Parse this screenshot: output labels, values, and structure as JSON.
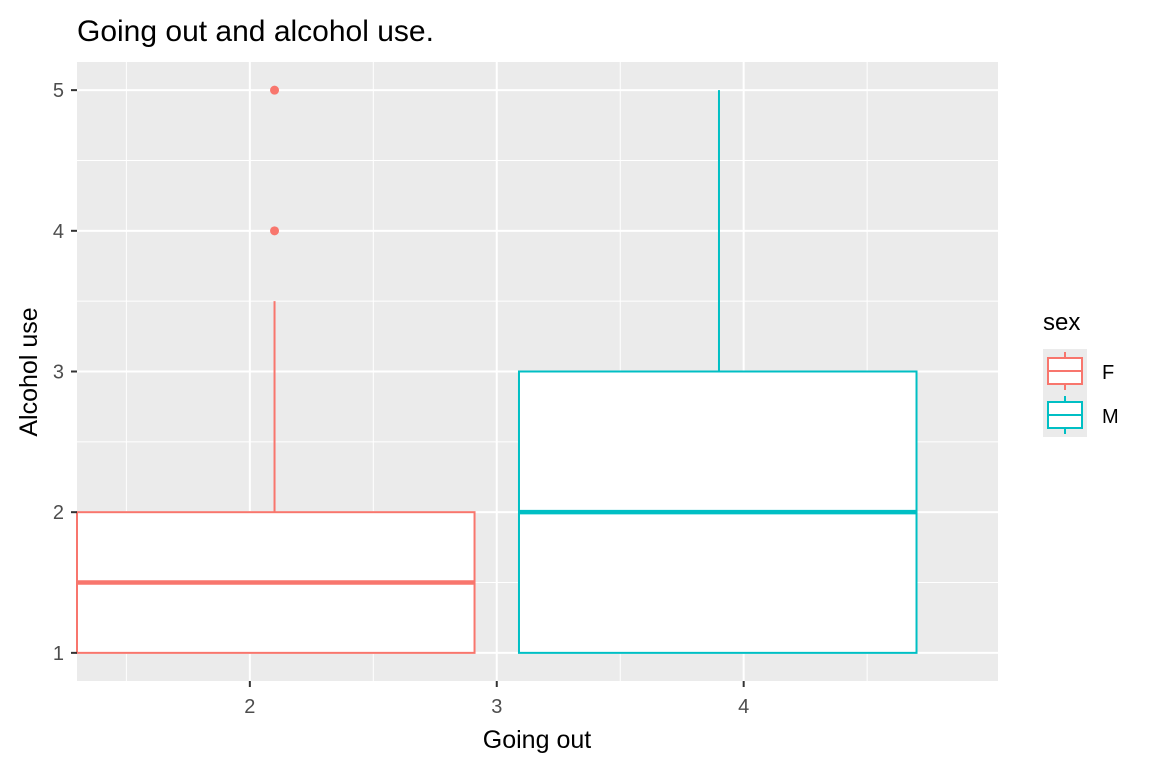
{
  "chart_data": {
    "type": "boxplot",
    "title": "Going out and alcohol use.",
    "xlabel": "Going out",
    "ylabel": "Alcohol use",
    "xlim": [
      1.3,
      5.03
    ],
    "ylim": [
      0.8,
      5.2
    ],
    "x_ticks": [
      2,
      3,
      4
    ],
    "x_minor_ticks": [
      1.5,
      2.5,
      3.5,
      4.5
    ],
    "y_ticks": [
      1,
      2,
      3,
      4,
      5
    ],
    "y_minor_ticks": [
      1.5,
      2.5,
      3.5,
      4.5
    ],
    "grid": true,
    "legend": {
      "title": "sex",
      "position": "right"
    },
    "series": [
      {
        "name": "F",
        "color": "#F8766D",
        "x_center": 2.1,
        "x_range": [
          1.3,
          2.91
        ],
        "whisker_low": 1,
        "q1": 1,
        "median": 1.5,
        "q3": 2,
        "whisker_high": 3.5,
        "outliers": [
          4,
          5
        ]
      },
      {
        "name": "M",
        "color": "#00BFC4",
        "x_center": 3.9,
        "x_range": [
          3.09,
          4.7
        ],
        "whisker_low": 1,
        "q1": 1,
        "median": 2,
        "q3": 3,
        "whisker_high": 5,
        "outliers": []
      }
    ]
  }
}
